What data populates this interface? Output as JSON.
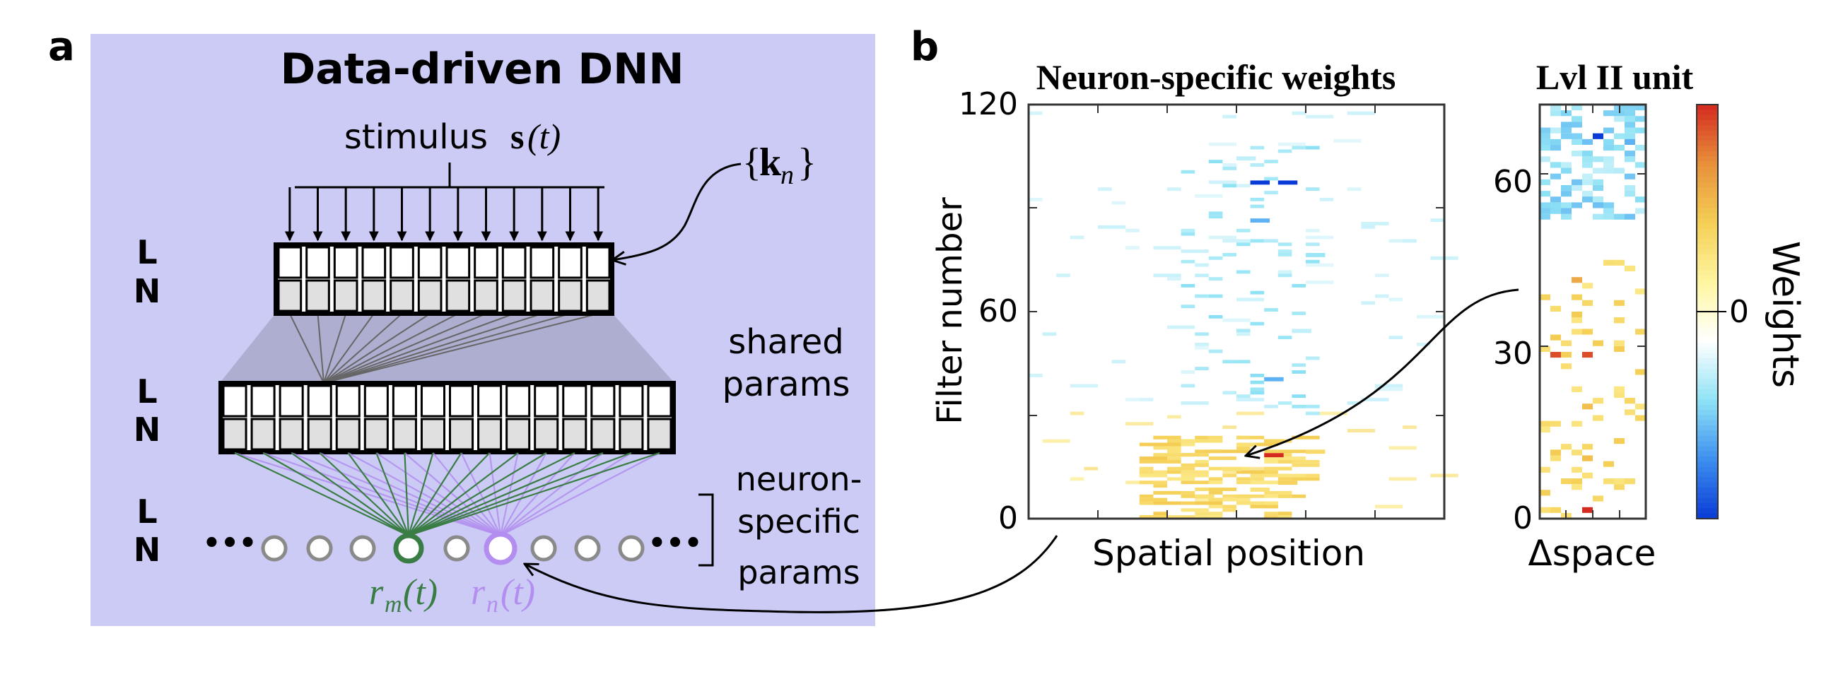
{
  "panel_a": {
    "label": "a",
    "title": "Data-driven DNN",
    "stimulus_word": "stimulus",
    "stimulus_symbol": "s",
    "stimulus_arg": "(t)",
    "filter_set_open": "{",
    "filter_set_symbol": "k",
    "filter_set_sub": "n",
    "filter_set_close": "}",
    "layer_letters": [
      "L",
      "N"
    ],
    "shared_params_lines": [
      "shared",
      "params"
    ],
    "neuron_params_lines": [
      "neuron-",
      "specific",
      "params"
    ],
    "ellipsis": "•••",
    "rm_symbol": "r",
    "rm_sub": "m",
    "rm_arg": "(t)",
    "rn_symbol": "r",
    "rn_sub": "n",
    "rn_arg": "(t)",
    "colors": {
      "background": "#cbcbf5",
      "green": "#3a7d44",
      "purple": "#b38ef0",
      "cell_fill_dark": "#e0e0e0"
    }
  },
  "panel_b": {
    "label": "b",
    "heatmap_title": "Neuron-specific weights",
    "heatmap_xlabel": "Spatial position",
    "heatmap_ylabel": "Filter number",
    "heatmap_yticks": [
      "0",
      "60",
      "120"
    ],
    "unit_title": "Lvl II unit",
    "unit_xlabel": "Δspace",
    "unit_yticks": [
      "0",
      "30",
      "60"
    ],
    "colorbar_label": "Weights",
    "colorbar_tick": "0",
    "colormap": [
      "#0a3bd6",
      "#3d8ff0",
      "#8fe3f5",
      "#ffffff",
      "#fff6a0",
      "#f5cf55",
      "#e8903a",
      "#d42a20"
    ]
  },
  "chart_data": [
    {
      "type": "heatmap",
      "title": "Neuron-specific weights",
      "xlabel": "Spatial position",
      "ylabel": "Filter number",
      "ylim": [
        0,
        120
      ],
      "yticks": [
        0,
        60,
        120
      ],
      "colorbar": "Weights",
      "cells": [
        {
          "x": 17,
          "y": 18,
          "value": 1.0
        },
        {
          "x": 17,
          "y": 22,
          "value": 0.4
        },
        {
          "x": 15,
          "y": 21,
          "value": 0.3
        },
        {
          "x": 20,
          "y": 19,
          "value": 0.35
        },
        {
          "x": 14,
          "y": 14,
          "value": 0.3
        },
        {
          "x": 18,
          "y": 10,
          "value": 0.4
        },
        {
          "x": 16,
          "y": 8,
          "value": 0.3
        },
        {
          "x": 12,
          "y": 6,
          "value": 0.3
        },
        {
          "x": 16,
          "y": 97,
          "value": -1.0
        },
        {
          "x": 18,
          "y": 97,
          "value": -1.0
        },
        {
          "x": 16,
          "y": 86,
          "value": -0.6
        },
        {
          "x": 17,
          "y": 40,
          "value": -0.6
        },
        {
          "x": 15,
          "y": 104,
          "value": -0.3
        },
        {
          "x": 20,
          "y": 76,
          "value": -0.4
        },
        {
          "x": 19,
          "y": 54,
          "value": -0.3
        }
      ]
    },
    {
      "type": "heatmap",
      "title": "Lvl II unit",
      "xlabel": "Δspace",
      "ylim": [
        0,
        72
      ],
      "yticks": [
        0,
        30,
        60
      ],
      "colorbar": "Weights",
      "cells": [
        {
          "x": 4,
          "y": 1,
          "value": 1.0
        },
        {
          "x": 1,
          "y": 28,
          "value": 0.9
        },
        {
          "x": 4,
          "y": 28,
          "value": 0.9
        },
        {
          "x": 3,
          "y": 41,
          "value": 0.6
        },
        {
          "x": 4,
          "y": 19,
          "value": 0.5
        },
        {
          "x": 4,
          "y": 10,
          "value": 0.5
        },
        {
          "x": 5,
          "y": 66,
          "value": -1.0
        },
        {
          "x": 8,
          "y": 65,
          "value": -0.6
        },
        {
          "x": 9,
          "y": 61,
          "value": -0.4
        }
      ]
    }
  ]
}
